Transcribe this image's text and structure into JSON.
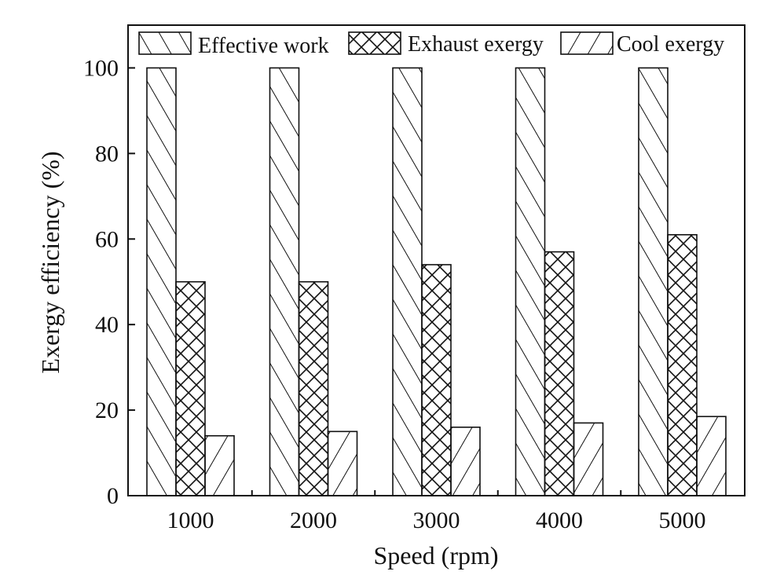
{
  "chart_data": {
    "type": "bar",
    "title": "",
    "xlabel": "Speed (rpm)",
    "ylabel": "Exergy efficiency (%)",
    "categories": [
      "1000",
      "2000",
      "3000",
      "4000",
      "5000"
    ],
    "ylim": [
      0,
      110
    ],
    "yticks": [
      0,
      20,
      40,
      60,
      80,
      100
    ],
    "grid": false,
    "legend_position": "top",
    "series": [
      {
        "name": "Effective work",
        "pattern": "forward-diagonal",
        "values": [
          100,
          100,
          100,
          100,
          100
        ]
      },
      {
        "name": "Exhaust exergy",
        "pattern": "crosshatch",
        "values": [
          50,
          50,
          54,
          57,
          61
        ]
      },
      {
        "name": "Cool exergy",
        "pattern": "backward-diagonal",
        "values": [
          14,
          15,
          16,
          17,
          18.5
        ]
      }
    ],
    "colors": {
      "stroke": "#111111",
      "fill": "#ffffff"
    }
  }
}
